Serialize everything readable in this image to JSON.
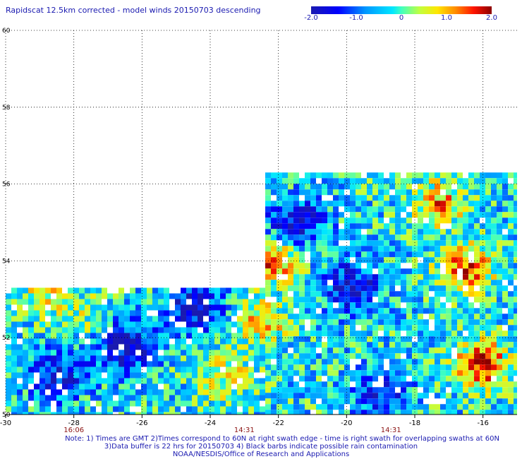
{
  "title": "Rapidscat 12.5km corrected - model winds 20150703 descending",
  "colorbar": {
    "labels": [
      {
        "text": "-2.0",
        "value": -2.0
      },
      {
        "text": "-1.0",
        "value": -1.0
      },
      {
        "text": "0",
        "value": 0
      },
      {
        "text": "1.0",
        "value": 1.0
      },
      {
        "text": "2.0",
        "value": 2.0
      }
    ],
    "min": -2.0,
    "max": 2.0
  },
  "notes": {
    "line1": "Note: 1) Times are GMT 2)Times correspond to 60N at right swath edge - time is right swath for overlapping swaths at 60N",
    "line2": "3)Data buffer is 22 hrs for 20150703 4) Black barbs indicate possible rain contamination",
    "line3": "NOAA/NESDIS/Office of Research and Applications"
  },
  "chart_data": {
    "type": "heatmap",
    "title": "Rapidscat 12.5km corrected - model winds 20150703 descending",
    "xlim": [
      -30,
      -15
    ],
    "ylim": [
      50,
      60
    ],
    "x_ticks": [
      {
        "value": -30,
        "label": "-30"
      },
      {
        "value": -28,
        "label": "-28"
      },
      {
        "value": -26,
        "label": "-26"
      },
      {
        "value": -24,
        "label": "-24"
      },
      {
        "value": -22,
        "label": "-22"
      },
      {
        "value": -20,
        "label": "-20"
      },
      {
        "value": -18,
        "label": "-18"
      },
      {
        "value": -16,
        "label": "-16"
      }
    ],
    "y_ticks": [
      {
        "value": 60,
        "label": "60"
      },
      {
        "value": 58,
        "label": "58"
      },
      {
        "value": 56,
        "label": "56"
      },
      {
        "value": 54,
        "label": "54"
      },
      {
        "value": 52,
        "label": "52"
      },
      {
        "value": 50,
        "label": "50"
      }
    ],
    "time_labels": [
      {
        "x": -28,
        "label": "16:06"
      },
      {
        "x": -23,
        "label": "14:31"
      },
      {
        "x": -18.7,
        "label": "14:31"
      }
    ],
    "grid": true,
    "colorbar_range": [
      -2.0,
      2.0
    ],
    "swaths": [
      {
        "x_range": [
          -30,
          -22.4
        ],
        "lat_top": 53.3
      },
      {
        "x_range": [
          -22.4,
          -15
        ],
        "lat_top": 56.3
      }
    ],
    "hotspots": [
      {
        "lon": -16.0,
        "lat": 51.3,
        "value": 2.0
      },
      {
        "lon": -16.5,
        "lat": 53.8,
        "value": 1.8
      },
      {
        "lon": -17.3,
        "lat": 55.5,
        "value": 1.4
      },
      {
        "lon": -22.2,
        "lat": 54.0,
        "value": 1.7
      },
      {
        "lon": -22.5,
        "lat": 52.4,
        "value": 1.2
      },
      {
        "lon": -23.5,
        "lat": 51.0,
        "value": 1.0
      },
      {
        "lon": -28.8,
        "lat": 53.2,
        "value": 0.9
      },
      {
        "lon": -27.5,
        "lat": 52.5,
        "value": 0.6
      }
    ],
    "coldspots": [
      {
        "lon": -26.5,
        "lat": 51.8,
        "value": -1.9
      },
      {
        "lon": -24.5,
        "lat": 52.8,
        "value": -1.8
      },
      {
        "lon": -21.5,
        "lat": 55.0,
        "value": -1.7
      },
      {
        "lon": -19.8,
        "lat": 53.3,
        "value": -1.7
      },
      {
        "lon": -19.0,
        "lat": 50.5,
        "value": -1.4
      },
      {
        "lon": -28.5,
        "lat": 51.0,
        "value": -1.5
      }
    ]
  }
}
